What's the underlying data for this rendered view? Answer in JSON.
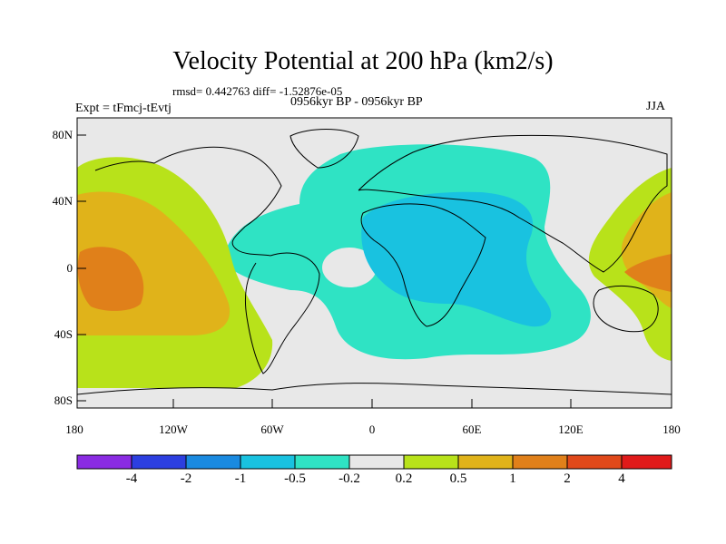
{
  "title": "Velocity Potential at 200 hPa (km2/s)",
  "stats": "rmsd= 0.442763 diff= -1.52876e-05",
  "experiment": "Expt = tFmcj-tEvtj",
  "period": "0956kyr BP - 0956kyr BP",
  "season": "JJA",
  "lat_labels": [
    "80N",
    "40N",
    "0",
    "40S",
    "80S"
  ],
  "lon_labels": [
    "180",
    "120W",
    "60W",
    "0",
    "60E",
    "120E",
    "180"
  ],
  "colorbar": {
    "labels": [
      "-4",
      "-2",
      "-1",
      "-0.5",
      "-0.2",
      "0.2",
      "0.5",
      "1",
      "2",
      "4"
    ],
    "colors": [
      "#8a2be2",
      "#2c3fe0",
      "#1a8ae0",
      "#19c2e0",
      "#2fe3c4",
      "#e8e8e8",
      "#b8e21a",
      "#e0b31a",
      "#e0801a",
      "#e0491a",
      "#e01a1a"
    ]
  },
  "fill_colors": {
    "land_bg": "#e8e8e8",
    "neg_02": "#2fe3c4",
    "neg_05": "#19c2e0",
    "pos_02": "#b8e21a",
    "pos_05": "#e0b31a",
    "pos_1": "#e0801a"
  }
}
